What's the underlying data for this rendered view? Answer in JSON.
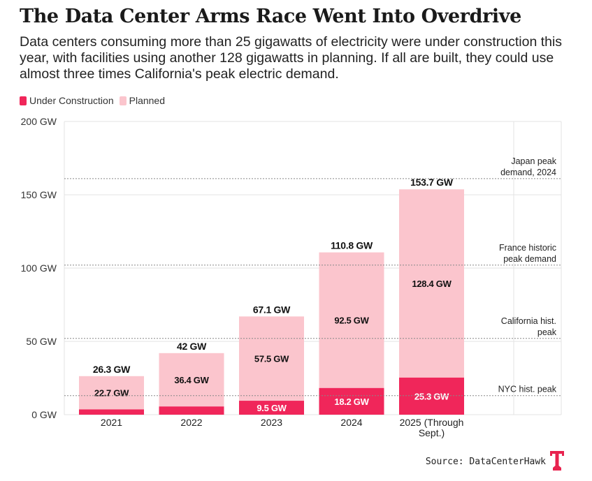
{
  "title": "The Data Center Arms Race Went Into Overdrive",
  "subtitle": "Data centers consuming more than 25 gigawatts of electricity were under construction this year, with facilities using another 128 gigawatts in planning. If all are built, they could use almost three times California's peak electric demand.",
  "legend": {
    "under_construction": "Under Construction",
    "planned": "Planned"
  },
  "colors": {
    "under_construction": "#f0265a",
    "planned": "#fbc5cd",
    "reference_line": "#888888",
    "logo": "#e8234f"
  },
  "source": "Source: DataCenterHawk",
  "logo_icon": "t-logo-icon",
  "chart_data": {
    "type": "bar",
    "stacked": true,
    "categories": [
      "2021",
      "2022",
      "2023",
      "2024",
      "2025 (Through Sept.)"
    ],
    "series": [
      {
        "name": "Under Construction",
        "values": [
          3.6,
          5.6,
          9.5,
          18.2,
          25.3
        ],
        "labels": [
          "",
          "",
          "9.5 GW",
          "18.2 GW",
          "25.3 GW"
        ]
      },
      {
        "name": "Planned",
        "values": [
          22.7,
          36.4,
          57.5,
          92.5,
          128.4
        ],
        "labels": [
          "22.7 GW",
          "36.4 GW",
          "57.5 GW",
          "92.5 GW",
          "128.4 GW"
        ]
      }
    ],
    "totals": [
      "26.3 GW",
      "42 GW",
      "67.1 GW",
      "110.8 GW",
      "153.7 GW"
    ],
    "ylim": [
      0,
      200
    ],
    "yticks": [
      0,
      50,
      100,
      150,
      200
    ],
    "ytick_labels": [
      "0 GW",
      "50 GW",
      "100 GW",
      "150 GW",
      "200 GW"
    ],
    "grid": true,
    "legend_position": "top-left",
    "reference_lines": [
      {
        "value": 161,
        "label_lines": [
          "Japan peak",
          "demand, 2024"
        ]
      },
      {
        "value": 102,
        "label_lines": [
          "France historic",
          "peak demand"
        ]
      },
      {
        "value": 52,
        "label_lines": [
          "California hist.",
          "peak"
        ]
      },
      {
        "value": 13,
        "label_lines": [
          "NYC hist. peak"
        ]
      }
    ]
  }
}
